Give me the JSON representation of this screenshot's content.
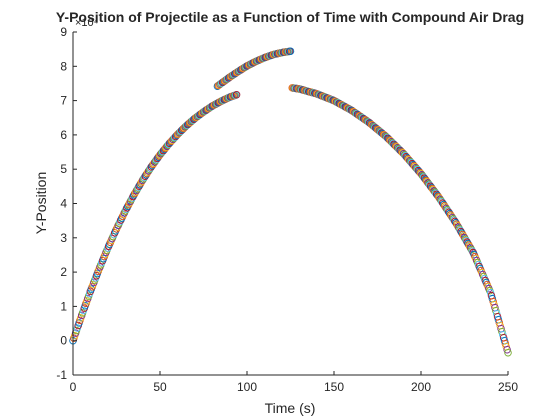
{
  "chart_data": {
    "type": "scatter",
    "title": "Y-Position of Projectile as a Function of Time with Compound Air Drag",
    "xlabel": "Time (s)",
    "ylabel": "Y-Position",
    "y_exponent": "×10⁴",
    "xlim": [
      0,
      250
    ],
    "ylim": [
      -1,
      9
    ],
    "x_ticks": [
      "0",
      "50",
      "100",
      "150",
      "200",
      "250"
    ],
    "y_ticks": [
      "-1",
      "0",
      "1",
      "2",
      "3",
      "4",
      "5",
      "6",
      "7",
      "8",
      "9"
    ],
    "grid": false,
    "marker": "circle",
    "colors": {
      "axis": "#262626",
      "marker_edges": [
        "#0072BD",
        "#D95319",
        "#EDB120",
        "#7E2F8E",
        "#77AC30",
        "#4DBEEE",
        "#A2142F"
      ]
    },
    "segments": [
      {
        "x": [
          0,
          5,
          10,
          15,
          20,
          25,
          30,
          35,
          40,
          45,
          50,
          55,
          60,
          65,
          70,
          75,
          80,
          85,
          90,
          94
        ],
        "y": [
          0,
          0.74,
          1.44,
          2.09,
          2.7,
          3.26,
          3.78,
          4.25,
          4.68,
          5.07,
          5.42,
          5.73,
          6.01,
          6.26,
          6.48,
          6.67,
          6.84,
          6.98,
          7.1,
          7.17
        ]
      },
      {
        "x": [
          83,
          90,
          95,
          100,
          105,
          110,
          115,
          120,
          125
        ],
        "y": [
          7.42,
          7.68,
          7.85,
          8.01,
          8.14,
          8.25,
          8.34,
          8.4,
          8.44
        ]
      },
      {
        "x": [
          126,
          130,
          140,
          150,
          160,
          170,
          180,
          190,
          200,
          210,
          220,
          230,
          240,
          250
        ],
        "y": [
          7.37,
          7.34,
          7.2,
          7.0,
          6.72,
          6.37,
          5.95,
          5.45,
          4.87,
          4.2,
          3.44,
          2.57,
          1.4,
          -0.35
        ]
      }
    ]
  }
}
